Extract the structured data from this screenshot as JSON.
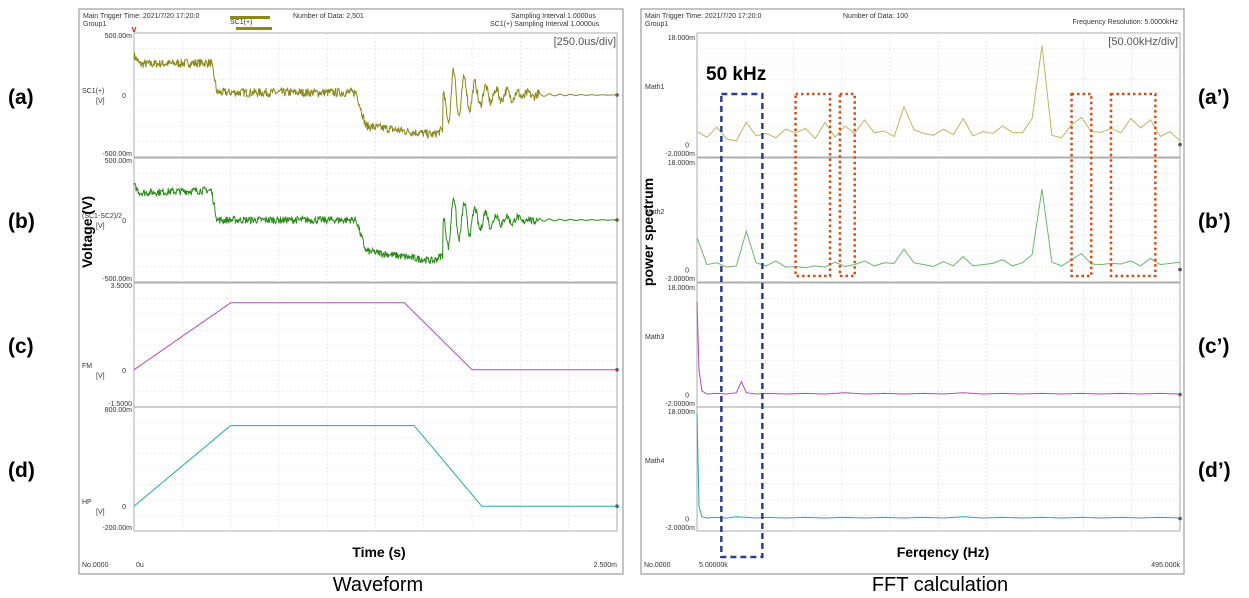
{
  "chart_data": [
    {
      "type": "line",
      "panel": "waveform",
      "header": {
        "trigger": "Main Trigger Time: 2021/7/20 17:20:0",
        "group": "Group1",
        "count": "Number of Data: 2,501",
        "sampling": "Sampling Interval 1.0000us",
        "sampling2": "SC1(+) Sampling Interval 1.0000us",
        "legend": "SC1(+)"
      },
      "div_label": "[250.0us/div]",
      "xlabel": "Time (s)",
      "x_ticks": [
        "0u",
        "2.500m"
      ],
      "x_range_us": [
        0,
        2500
      ],
      "corner_label": "No.0000",
      "caption": "Waveform",
      "channels": [
        {
          "row_label": "(a)",
          "channel": "SC1(+)",
          "unit": "[V]",
          "ymax_label": "500.00m",
          "zero_label": "0",
          "ymin_label": "-500.00m",
          "ylim": [
            -0.5,
            0.5
          ],
          "color": "#8a8a1c",
          "noise": 0.035,
          "x": [
            0,
            30,
            400,
            430,
            1150,
            1200,
            1550,
            1600,
            1620,
            2500
          ],
          "y": [
            0.32,
            0.25,
            0.26,
            0.02,
            0.02,
            -0.25,
            -0.32,
            -0.28,
            0.0,
            0.0
          ],
          "ring": {
            "start": 1600,
            "amp": 0.28,
            "decay": 160,
            "period": 55
          }
        },
        {
          "row_label": "(b)",
          "channel": "(SC1-SC2)/2",
          "unit": "[V]",
          "ymax_label": "500.00m",
          "zero_label": "0",
          "ymin_label": "-500.00m",
          "ylim": [
            -0.5,
            0.5
          ],
          "color": "#2e8b1e",
          "noise": 0.03,
          "x": [
            0,
            30,
            400,
            430,
            1150,
            1200,
            1550,
            1600,
            1620,
            2500
          ],
          "y": [
            0.28,
            0.22,
            0.24,
            0.0,
            0.0,
            -0.25,
            -0.33,
            -0.28,
            0.0,
            0.0
          ],
          "ring": {
            "start": 1600,
            "amp": 0.26,
            "decay": 160,
            "period": 55
          }
        },
        {
          "row_label": "(c)",
          "channel": "FM",
          "unit": "[V]",
          "ymax_label": "3.5000",
          "zero_label": "0",
          "ymin_label": "-1.5000",
          "ylim": [
            -1.5,
            3.5
          ],
          "color": "#b04db0",
          "noise": 0,
          "x": [
            0,
            500,
            1400,
            1750,
            2500
          ],
          "y": [
            0,
            2.7,
            2.7,
            0,
            0
          ]
        },
        {
          "row_label": "(d)",
          "channel": "HP",
          "unit": "[V]",
          "ymax_label": "800.00m",
          "zero_label": "0",
          "ymin_label": "-200.00m",
          "ylim": [
            -0.2,
            0.8
          ],
          "color": "#2aa6a6",
          "noise": 0,
          "x": [
            0,
            500,
            1450,
            1800,
            2500
          ],
          "y": [
            0,
            0.65,
            0.65,
            0,
            0
          ]
        }
      ]
    },
    {
      "type": "line",
      "panel": "fft",
      "header": {
        "trigger": "Main Trigger Time: 2021/7/20 17:20:0",
        "group": "Group1",
        "count": "Number of Data: 100",
        "resolution": "Frequency Resolution: 5.0000kHz"
      },
      "div_label": "[50.00kHz/div]",
      "xlabel": "Ferqency (Hz)",
      "ylabel": "power spectrum",
      "x_ticks": [
        "5.00000k",
        "495.000k"
      ],
      "x_range_khz": [
        5,
        495
      ],
      "corner_label": "No.0000",
      "caption": "FFT calculation",
      "annotation": "50 kHz",
      "highlight_khz": [
        50,
        50
      ],
      "dotted_bands_khz": [
        [
          105,
          140
        ],
        [
          150,
          165
        ],
        [
          385,
          405
        ],
        [
          425,
          470
        ]
      ],
      "channels": [
        {
          "row_label": "(a’)",
          "channel": "Math1",
          "ymax_label": "18.000m",
          "zero_label": "0",
          "ymin_label": "-2.0000m",
          "ylim": [
            -2,
            18
          ],
          "color": "#b8b86a",
          "x": [
            5,
            15,
            25,
            35,
            45,
            55,
            65,
            75,
            85,
            95,
            105,
            115,
            125,
            135,
            145,
            155,
            165,
            175,
            185,
            195,
            205,
            215,
            225,
            235,
            245,
            255,
            265,
            275,
            285,
            295,
            305,
            315,
            325,
            335,
            345,
            355,
            365,
            375,
            385,
            395,
            405,
            415,
            425,
            435,
            445,
            455,
            465,
            475,
            485,
            495
          ],
          "y": [
            2.1,
            1.2,
            2.8,
            0.9,
            0.6,
            3.6,
            1.4,
            1.8,
            1.1,
            2.5,
            1.9,
            2.6,
            1.0,
            3.6,
            1.2,
            3.0,
            1.8,
            4.0,
            1.9,
            2.2,
            1.3,
            6.1,
            2.4,
            1.8,
            1.5,
            2.5,
            1.6,
            4.2,
            1.4,
            2.1,
            1.8,
            3.0,
            2.0,
            1.9,
            4.2,
            16.0,
            1.5,
            1.1,
            3.2,
            4.4,
            2.1,
            2.0,
            2.6,
            1.9,
            4.2,
            2.7,
            4.0,
            1.3,
            2.1,
            0.6
          ]
        },
        {
          "row_label": "(b’)",
          "channel": "Math2",
          "ymax_label": "18.000m",
          "zero_label": "0",
          "ymin_label": "-2.0000m",
          "ylim": [
            -2,
            18
          ],
          "color": "#6cb86c",
          "x": [
            5,
            15,
            25,
            35,
            45,
            55,
            65,
            75,
            85,
            95,
            105,
            115,
            125,
            135,
            145,
            155,
            165,
            175,
            185,
            195,
            205,
            215,
            225,
            235,
            245,
            255,
            265,
            275,
            285,
            295,
            305,
            315,
            325,
            335,
            345,
            355,
            365,
            375,
            385,
            395,
            405,
            415,
            425,
            435,
            445,
            455,
            465,
            475,
            485,
            495
          ],
          "y": [
            5.2,
            0.8,
            1.1,
            0.4,
            0.6,
            6.2,
            1.1,
            0.6,
            1.4,
            0.4,
            0.5,
            0.3,
            0.6,
            0.4,
            1.2,
            0.5,
            0.8,
            1.4,
            0.6,
            1.1,
            1.0,
            3.3,
            1.1,
            0.8,
            0.5,
            1.3,
            0.6,
            2.1,
            0.6,
            0.8,
            1.0,
            1.6,
            0.6,
            1.1,
            2.4,
            13.0,
            1.2,
            0.6,
            1.6,
            2.6,
            0.9,
            0.8,
            1.0,
            0.9,
            1.4,
            0.6,
            1.8,
            0.8,
            1.0,
            1.2
          ]
        },
        {
          "row_label": "(c’)",
          "channel": "Math3",
          "ymax_label": "18.000m",
          "zero_label": "0",
          "ymin_label": "-2.0000m",
          "ylim": [
            -2,
            18
          ],
          "color": "#b04db0",
          "x": [
            5,
            7,
            10,
            15,
            25,
            35,
            45,
            50,
            55,
            65,
            75,
            95,
            115,
            135,
            155,
            175,
            195,
            215,
            235,
            255,
            275,
            295,
            315,
            335,
            355,
            375,
            395,
            415,
            435,
            455,
            475,
            495
          ],
          "y": [
            15.0,
            4.0,
            0.6,
            0.1,
            0.2,
            0.1,
            0.3,
            2.1,
            0.3,
            0.1,
            0.2,
            0.1,
            0.2,
            0.1,
            0.3,
            0.1,
            0.2,
            0.1,
            0.2,
            0.1,
            0.3,
            0.1,
            0.2,
            0.1,
            0.2,
            0.1,
            0.2,
            0.1,
            0.2,
            0.1,
            0.2,
            0.1
          ]
        },
        {
          "row_label": "(d’)",
          "channel": "Math4",
          "ymax_label": "18.000m",
          "zero_label": "0",
          "ymin_label": "-2.0000m",
          "ylim": [
            -2,
            18
          ],
          "color": "#2aa6a6",
          "x": [
            5,
            7,
            10,
            15,
            25,
            35,
            45,
            55,
            65,
            75,
            95,
            115,
            135,
            155,
            175,
            195,
            215,
            235,
            255,
            275,
            295,
            315,
            335,
            355,
            375,
            395,
            415,
            435,
            455,
            475,
            495
          ],
          "y": [
            17.0,
            2.0,
            0.3,
            0.1,
            0.2,
            0.1,
            0.3,
            0.2,
            0.1,
            0.2,
            0.1,
            0.2,
            0.1,
            0.2,
            0.1,
            0.2,
            0.1,
            0.2,
            0.1,
            0.3,
            0.1,
            0.2,
            0.1,
            0.2,
            0.1,
            0.2,
            0.1,
            0.2,
            0.1,
            0.2,
            0.1
          ]
        }
      ]
    }
  ],
  "left_ylabel": "Voltage (V)"
}
